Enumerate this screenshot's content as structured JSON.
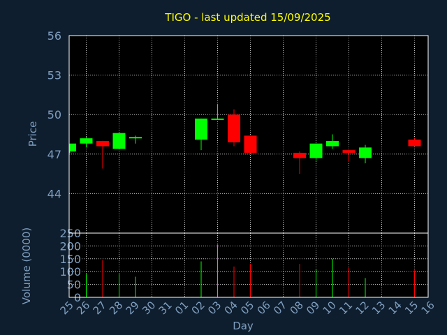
{
  "colors": {
    "background": "#0f1e2e",
    "plot_background": "#000000",
    "title": "#ffff00",
    "text": "#7f9fc0",
    "grid": "#c0c0c0",
    "up": "#00ff00",
    "down": "#ff0000"
  },
  "chart_data": [
    {
      "type": "candlestick",
      "title": "TIGO - last updated 15/09/2025",
      "ylabel": "Price",
      "xlabel": "",
      "ylim": [
        41,
        56
      ],
      "yticks": [
        44,
        47,
        50,
        53,
        56
      ],
      "grid": true,
      "categories": [
        "25",
        "26",
        "27",
        "28",
        "29",
        "30",
        "31",
        "01",
        "02",
        "03",
        "04",
        "05",
        "06",
        "07",
        "08",
        "09",
        "10",
        "11",
        "12",
        "13",
        "14",
        "15",
        "16"
      ],
      "candles": [
        {
          "day": "25",
          "open": 47.2,
          "close": 47.8,
          "high": 47.8,
          "low": 47.1
        },
        {
          "day": "26",
          "open": 47.8,
          "close": 48.2,
          "high": 48.3,
          "low": 47.5
        },
        {
          "day": "27",
          "open": 48.0,
          "close": 47.6,
          "high": 48.0,
          "low": 45.9
        },
        {
          "day": "28",
          "open": 47.4,
          "close": 48.6,
          "high": 48.6,
          "low": 47.4
        },
        {
          "day": "29",
          "open": 48.2,
          "close": 48.3,
          "high": 48.4,
          "low": 47.8
        },
        {
          "day": "02",
          "open": 48.1,
          "close": 49.7,
          "high": 49.7,
          "low": 47.3
        },
        {
          "day": "03",
          "open": 49.6,
          "close": 49.7,
          "high": 50.8,
          "low": 49.6
        },
        {
          "day": "04",
          "open": 50.0,
          "close": 47.9,
          "high": 50.4,
          "low": 47.6
        },
        {
          "day": "05",
          "open": 48.4,
          "close": 47.1,
          "high": 48.4,
          "low": 47.1
        },
        {
          "day": "08",
          "open": 47.1,
          "close": 46.7,
          "high": 47.2,
          "low": 45.5
        },
        {
          "day": "09",
          "open": 46.7,
          "close": 47.8,
          "high": 47.8,
          "low": 46.5
        },
        {
          "day": "10",
          "open": 47.6,
          "close": 48.0,
          "high": 48.5,
          "low": 47.4
        },
        {
          "day": "11",
          "open": 47.3,
          "close": 47.1,
          "high": 47.3,
          "low": 46.4
        },
        {
          "day": "12",
          "open": 46.7,
          "close": 47.5,
          "high": 47.7,
          "low": 46.3
        },
        {
          "day": "15",
          "open": 48.1,
          "close": 47.6,
          "high": 48.2,
          "low": 47.6
        }
      ]
    },
    {
      "type": "bar",
      "ylabel": "Volume (0000)",
      "xlabel": "Day",
      "ylim": [
        0,
        250
      ],
      "yticks": [
        0,
        50,
        100,
        150,
        200,
        250
      ],
      "grid": true,
      "categories": [
        "25",
        "26",
        "27",
        "28",
        "29",
        "30",
        "31",
        "01",
        "02",
        "03",
        "04",
        "05",
        "06",
        "07",
        "08",
        "09",
        "10",
        "11",
        "12",
        "13",
        "14",
        "15",
        "16"
      ],
      "bars": [
        {
          "day": "26",
          "value": 90,
          "direction": "up"
        },
        {
          "day": "27",
          "value": 145,
          "direction": "down"
        },
        {
          "day": "28",
          "value": 90,
          "direction": "up"
        },
        {
          "day": "29",
          "value": 80,
          "direction": "up"
        },
        {
          "day": "02",
          "value": 140,
          "direction": "up"
        },
        {
          "day": "03",
          "value": 205,
          "direction": "up"
        },
        {
          "day": "04",
          "value": 120,
          "direction": "down"
        },
        {
          "day": "05",
          "value": 130,
          "direction": "down"
        },
        {
          "day": "08",
          "value": 130,
          "direction": "down"
        },
        {
          "day": "09",
          "value": 110,
          "direction": "up"
        },
        {
          "day": "10",
          "value": 150,
          "direction": "up"
        },
        {
          "day": "11",
          "value": 115,
          "direction": "down"
        },
        {
          "day": "12",
          "value": 75,
          "direction": "up"
        },
        {
          "day": "15",
          "value": 105,
          "direction": "down"
        }
      ]
    }
  ]
}
